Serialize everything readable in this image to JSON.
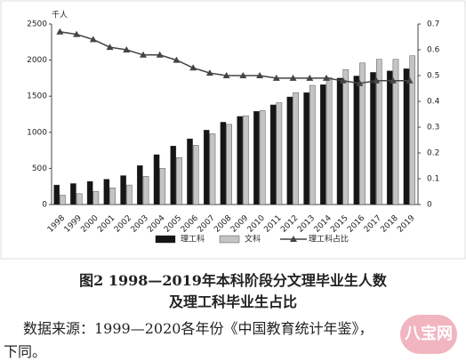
{
  "chart_data": {
    "type": "combo",
    "unit_label": "千人",
    "categories": [
      "1998",
      "1999",
      "2000",
      "2001",
      "2002",
      "2003",
      "2004",
      "2005",
      "2006",
      "2007",
      "2008",
      "2009",
      "2010",
      "2011",
      "2012",
      "2013",
      "2014",
      "2015",
      "2016",
      "2017",
      "2018",
      "2019"
    ],
    "series": [
      {
        "name": "理工科",
        "type": "bar",
        "color": "#151515",
        "values": [
          270,
          290,
          320,
          350,
          400,
          540,
          690,
          810,
          910,
          1030,
          1140,
          1220,
          1290,
          1380,
          1490,
          1550,
          1660,
          1750,
          1780,
          1830,
          1850,
          1880
        ]
      },
      {
        "name": "文科",
        "type": "bar",
        "color": "#c4c4c4",
        "values": [
          130,
          150,
          180,
          230,
          270,
          390,
          500,
          650,
          820,
          980,
          1110,
          1230,
          1300,
          1410,
          1550,
          1650,
          1760,
          1870,
          1960,
          2010,
          2010,
          2060
        ]
      },
      {
        "name": "理工科占比",
        "type": "line",
        "axis": "y2",
        "color": "#444444",
        "values": [
          0.67,
          0.66,
          0.64,
          0.61,
          0.6,
          0.58,
          0.58,
          0.56,
          0.53,
          0.51,
          0.5,
          0.5,
          0.5,
          0.49,
          0.49,
          0.49,
          0.49,
          0.48,
          0.47,
          0.48,
          0.48,
          0.48
        ]
      }
    ],
    "ylim": [
      0,
      2500
    ],
    "yticks": [
      0,
      500,
      1000,
      1500,
      2000,
      2500
    ],
    "y2lim": [
      0,
      0.7
    ],
    "y2ticks": [
      0,
      0.1,
      0.2,
      0.3,
      0.4,
      0.5,
      0.6,
      0.7
    ],
    "legend": "bottom"
  },
  "caption": {
    "title_line1": "图2 1998—2019年本科阶段分文理毕业生人数",
    "title_line2": "及理工科毕业生占比",
    "source_line1": "数据来源：1999—2020各年份《中国教育统计年鉴》，",
    "source_line2": "下同。"
  },
  "watermark": "八宝网"
}
